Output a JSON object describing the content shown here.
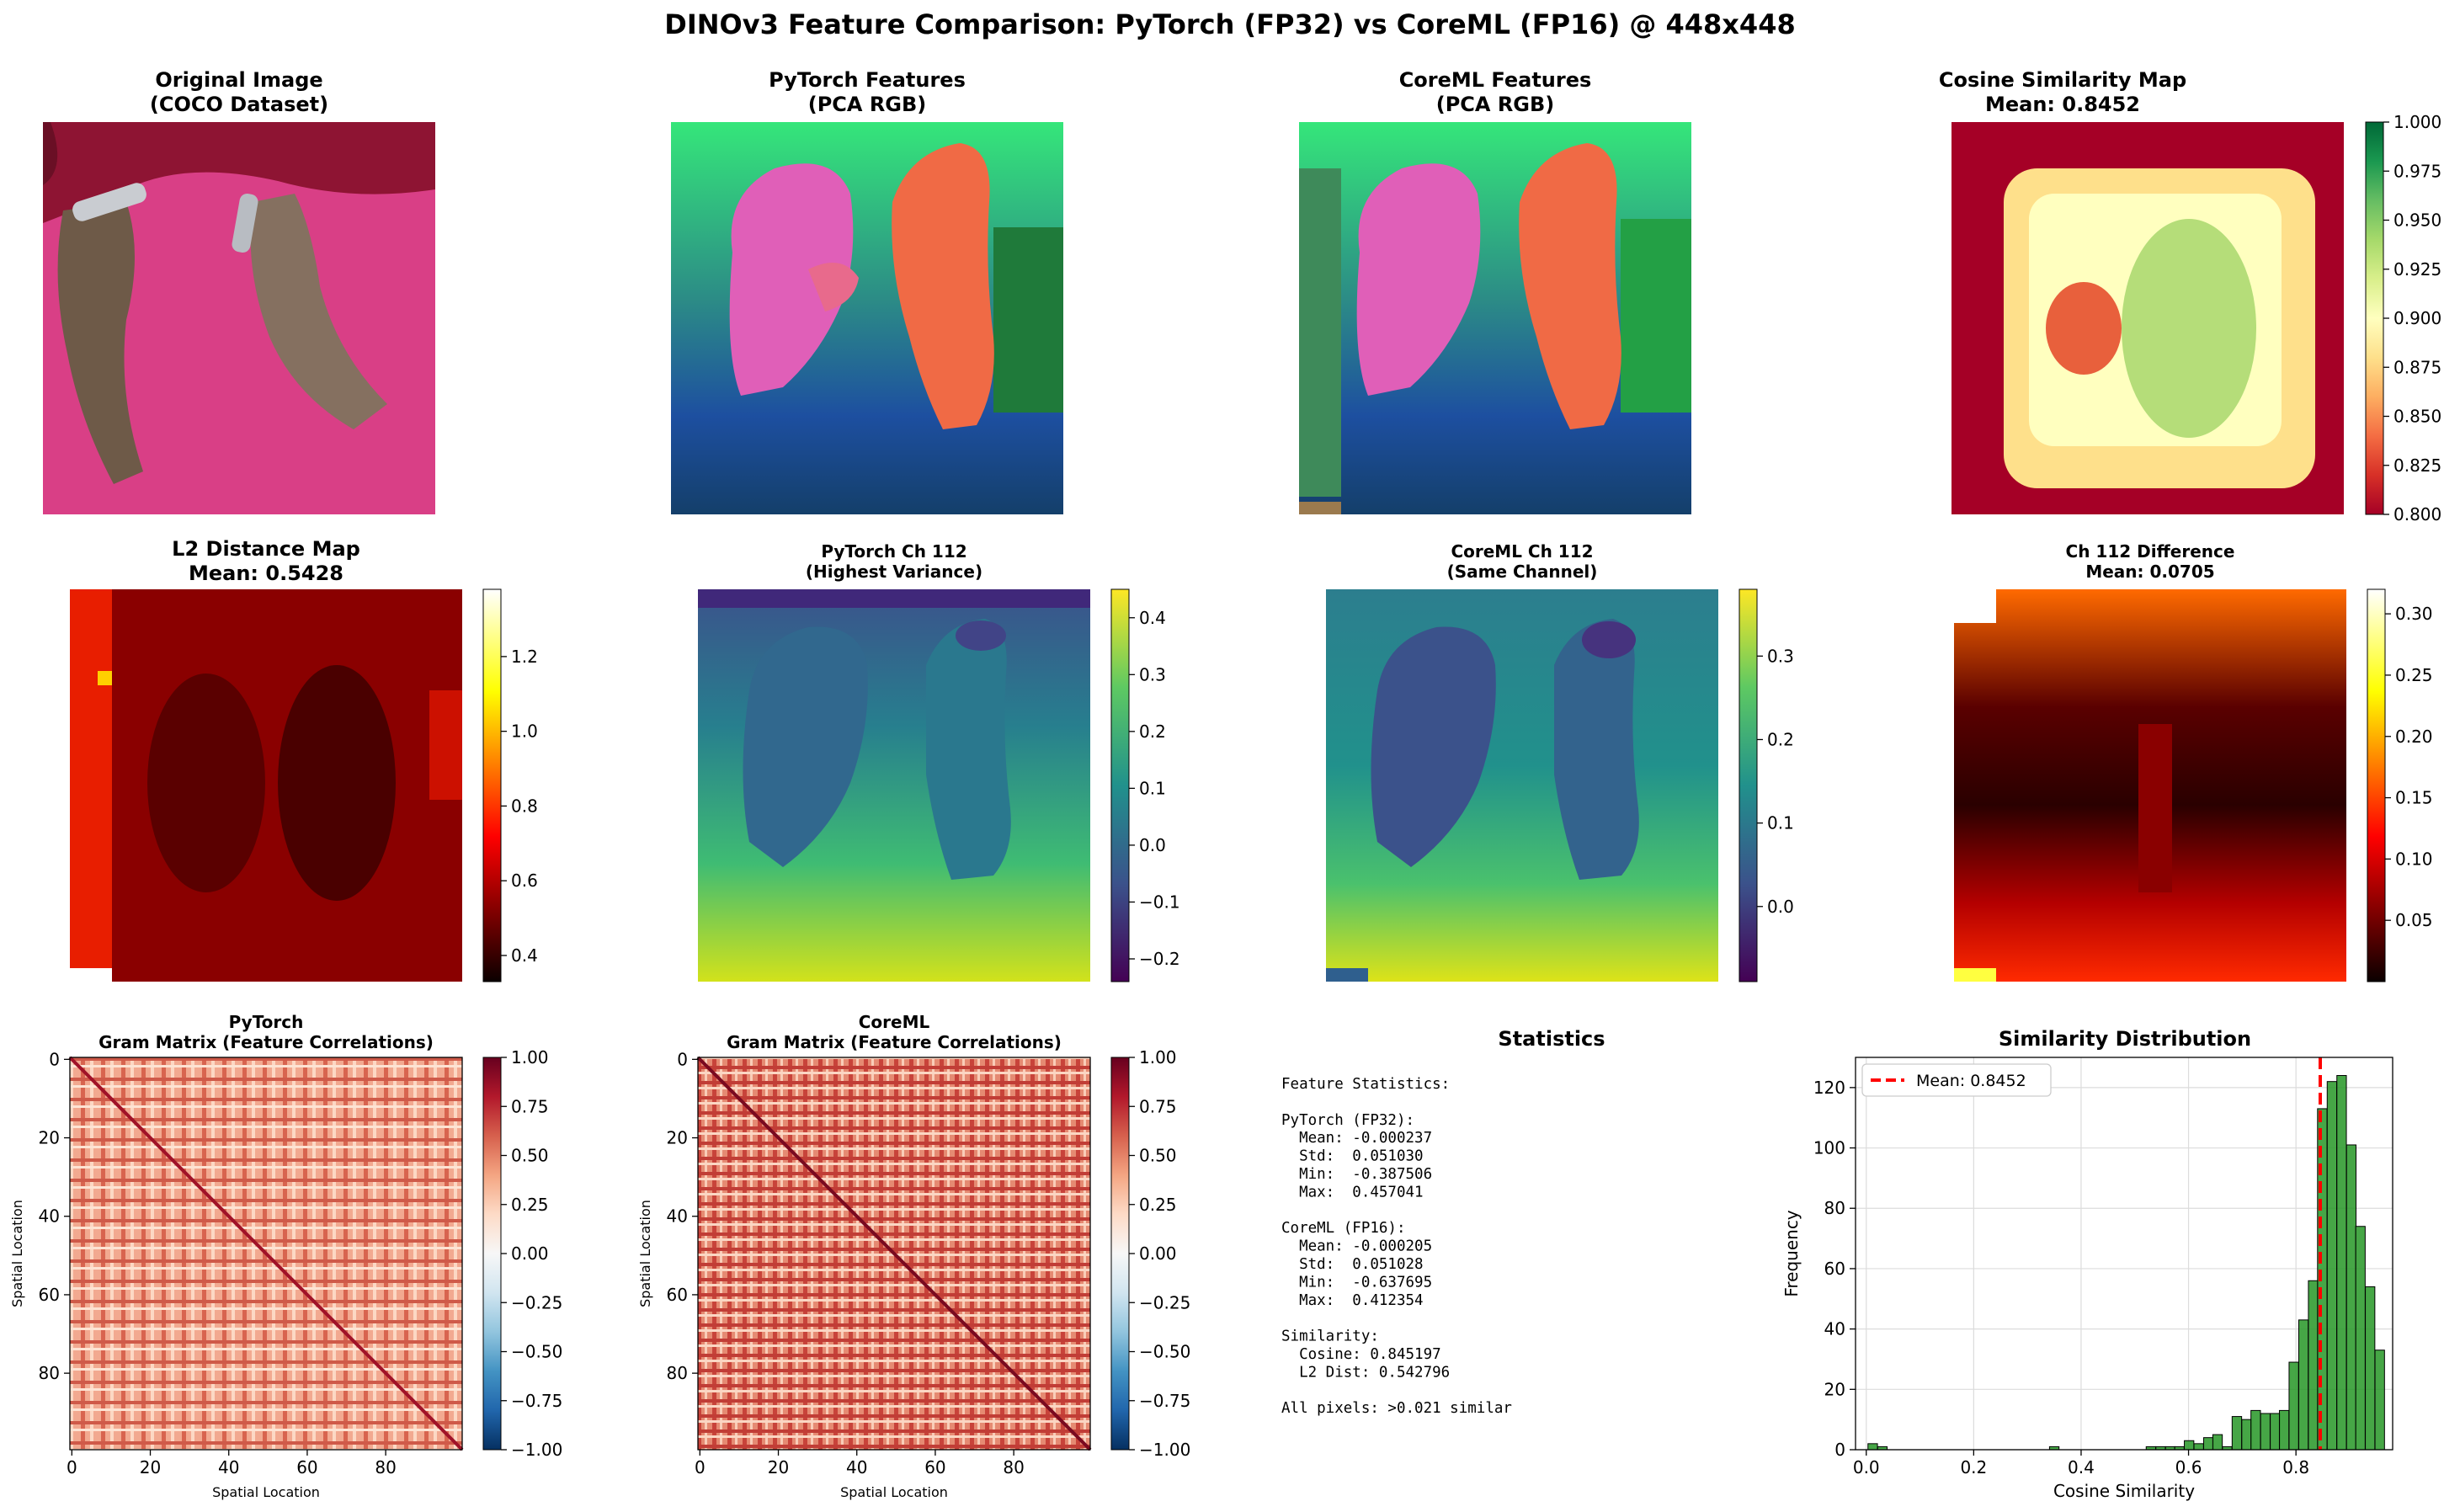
{
  "figure": {
    "title": "DINOv3 Feature Comparison: PyTorch (FP32) vs CoreML (FP16) @ 448x448"
  },
  "colors": {
    "pca_salmon": "#f06a45",
    "pca_magenta": "#e05fb8",
    "pca_green": "#2fc468",
    "pca_blue": "#1b56a8",
    "pca_dark": "#1f4a33",
    "hist_bar": "#2c9a2c",
    "mean_line": "#ff0000"
  },
  "panels": {
    "original": {
      "title1": "Original Image",
      "title2": "(COCO Dataset)"
    },
    "pytorch_pca": {
      "title1": "PyTorch Features",
      "title2": "(PCA RGB)"
    },
    "coreml_pca": {
      "title1": "CoreML Features",
      "title2": "(PCA RGB)"
    },
    "cosine_map": {
      "title1": "Cosine Similarity Map",
      "title2": "Mean: 0.8452",
      "colormap": "RdYlGn",
      "vmin": 0.8,
      "vmax": 1.0,
      "ticks": [
        "0.800",
        "0.825",
        "0.850",
        "0.875",
        "0.900",
        "0.925",
        "0.950",
        "0.975",
        "1.000"
      ]
    },
    "l2_map": {
      "title1": "L2 Distance Map",
      "title2": "Mean: 0.5428",
      "colormap": "hot",
      "vmin": 0.33,
      "vmax": 1.38,
      "ticks": [
        "0.4",
        "0.6",
        "0.8",
        "1.0",
        "1.2"
      ],
      "tick_values": [
        0.4,
        0.6,
        0.8,
        1.0,
        1.2
      ]
    },
    "pytorch_ch": {
      "title1": "PyTorch Ch 112",
      "title2": "(Highest Variance)",
      "colormap": "viridis",
      "vmin": -0.24,
      "vmax": 0.45,
      "ticks": [
        "−0.2",
        "−0.1",
        "0.0",
        "0.1",
        "0.2",
        "0.3",
        "0.4"
      ],
      "tick_values": [
        -0.2,
        -0.1,
        0.0,
        0.1,
        0.2,
        0.3,
        0.4
      ]
    },
    "coreml_ch": {
      "title1": "CoreML Ch 112",
      "title2": "(Same Channel)",
      "colormap": "viridis",
      "vmin": -0.09,
      "vmax": 0.38,
      "ticks": [
        "0.0",
        "0.1",
        "0.2",
        "0.3"
      ],
      "tick_values": [
        0.0,
        0.1,
        0.2,
        0.3
      ]
    },
    "ch_diff": {
      "title1": "Ch 112 Difference",
      "title2": "Mean: 0.0705",
      "colormap": "hot",
      "vmin": 0.0,
      "vmax": 0.32,
      "ticks": [
        "0.05",
        "0.10",
        "0.15",
        "0.20",
        "0.25",
        "0.30"
      ],
      "tick_values": [
        0.05,
        0.1,
        0.15,
        0.2,
        0.25,
        0.3
      ]
    },
    "gram_pytorch": {
      "title1": "PyTorch",
      "title2": "Gram Matrix (Feature Correlations)",
      "xlabel": "Spatial Location",
      "ylabel": "Spatial Location",
      "axis_ticks": [
        "0",
        "20",
        "40",
        "60",
        "80"
      ],
      "colormap": "RdBu_r",
      "vmin": -1.0,
      "vmax": 1.0,
      "ticks": [
        "−1.00",
        "−0.75",
        "−0.50",
        "−0.25",
        "0.00",
        "0.25",
        "0.50",
        "0.75",
        "1.00"
      ]
    },
    "gram_coreml": {
      "title1": "CoreML",
      "title2": "Gram Matrix (Feature Correlations)",
      "xlabel": "Spatial Location",
      "ylabel": "Spatial Location",
      "axis_ticks": [
        "0",
        "20",
        "40",
        "60",
        "80"
      ],
      "colormap": "RdBu_r",
      "vmin": -1.0,
      "vmax": 1.0,
      "ticks": [
        "−1.00",
        "−0.75",
        "−0.50",
        "−0.25",
        "0.00",
        "0.25",
        "0.50",
        "0.75",
        "1.00"
      ]
    },
    "statistics": {
      "title": "Statistics",
      "lines": [
        "Feature Statistics:",
        "",
        "PyTorch (FP32):",
        "  Mean: -0.000237",
        "  Std:  0.051030",
        "  Min:  -0.387506",
        "  Max:  0.457041",
        "",
        "CoreML (FP16):",
        "  Mean: -0.000205",
        "  Std:  0.051028",
        "  Min:  -0.637695",
        "  Max:  0.412354",
        "",
        "Similarity:",
        "  Cosine: 0.845197",
        "  L2 Dist: 0.542796",
        "",
        "All pixels: >0.021 similar"
      ]
    }
  },
  "chart_data": {
    "type": "bar",
    "title": "Similarity Distribution",
    "xlabel": "Cosine Similarity",
    "ylabel": "Frequency",
    "xlim": [
      -0.02,
      0.98
    ],
    "ylim": [
      0,
      130
    ],
    "xticks": [
      "0.0",
      "0.2",
      "0.4",
      "0.6",
      "0.8"
    ],
    "yticks": [
      "0",
      "20",
      "40",
      "60",
      "80",
      "100",
      "120"
    ],
    "grid": true,
    "legend": {
      "placement": "top-left",
      "entry": "Mean: 0.8452"
    },
    "mean": 0.8452,
    "bin_width": 0.0177,
    "bins": [
      {
        "x": 0.012,
        "count": 2
      },
      {
        "x": 0.03,
        "count": 1
      },
      {
        "x": 0.35,
        "count": 1
      },
      {
        "x": 0.53,
        "count": 1
      },
      {
        "x": 0.548,
        "count": 1
      },
      {
        "x": 0.566,
        "count": 1
      },
      {
        "x": 0.583,
        "count": 1
      },
      {
        "x": 0.601,
        "count": 3
      },
      {
        "x": 0.619,
        "count": 2
      },
      {
        "x": 0.637,
        "count": 4
      },
      {
        "x": 0.654,
        "count": 5
      },
      {
        "x": 0.672,
        "count": 1
      },
      {
        "x": 0.69,
        "count": 11
      },
      {
        "x": 0.708,
        "count": 10
      },
      {
        "x": 0.725,
        "count": 13
      },
      {
        "x": 0.743,
        "count": 12
      },
      {
        "x": 0.761,
        "count": 12
      },
      {
        "x": 0.778,
        "count": 13
      },
      {
        "x": 0.796,
        "count": 29
      },
      {
        "x": 0.814,
        "count": 43
      },
      {
        "x": 0.832,
        "count": 56
      },
      {
        "x": 0.849,
        "count": 113
      },
      {
        "x": 0.867,
        "count": 122
      },
      {
        "x": 0.885,
        "count": 124
      },
      {
        "x": 0.903,
        "count": 101
      },
      {
        "x": 0.92,
        "count": 74
      },
      {
        "x": 0.938,
        "count": 54
      },
      {
        "x": 0.956,
        "count": 33
      }
    ]
  }
}
